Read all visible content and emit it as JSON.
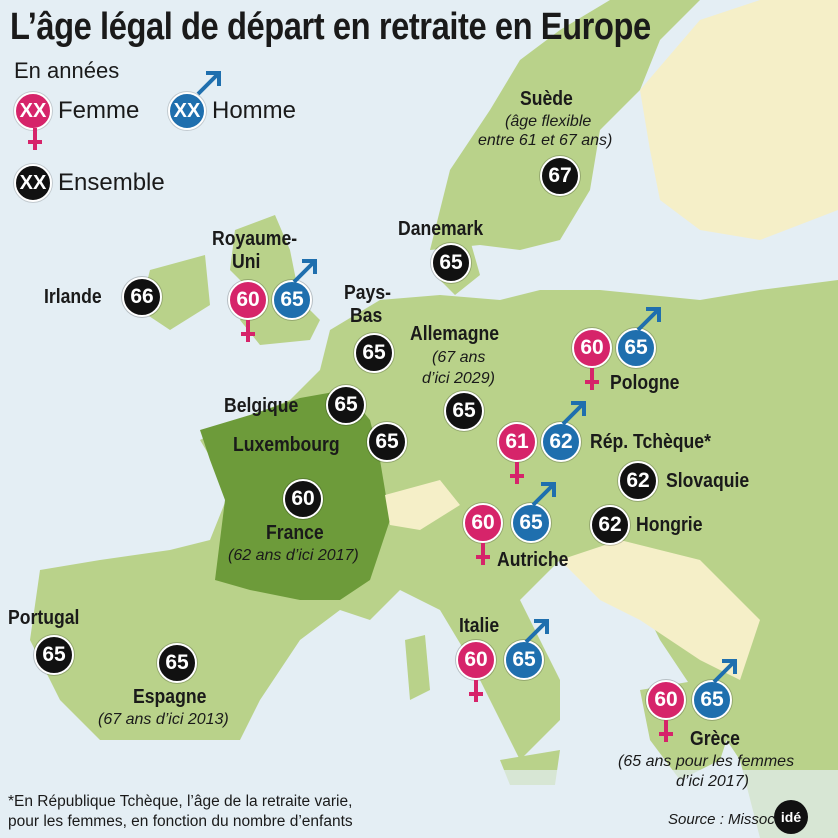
{
  "title": "L’âge légal de départ en retraite en Europe",
  "unit": "En années",
  "legend": {
    "female_label": "Femme",
    "male_label": "Homme",
    "all_label": "Ensemble",
    "sample": "XX"
  },
  "colors": {
    "female": "#d6246a",
    "male": "#1f6fae",
    "all": "#111111",
    "sea": "#dbe9f1",
    "land": "#b9d28a",
    "land_highlight": "#6d9b3a",
    "land_other": "#f5efc8"
  },
  "countries": {
    "suede": {
      "name": "Suède",
      "note1": "(âge flexible",
      "note2": "entre 61 et 67 ans)",
      "all": "67"
    },
    "danemark": {
      "name": "Danemark",
      "all": "65"
    },
    "ru": {
      "name1": "Royaume-",
      "name2": "Uni",
      "female": "60",
      "male": "65"
    },
    "irlande": {
      "name": "Irlande",
      "all": "66"
    },
    "paysbas": {
      "name1": "Pays-",
      "name2": "Bas",
      "all": "65"
    },
    "allemagne": {
      "name": "Allemagne",
      "note1": "(67 ans",
      "note2": "d’ici 2029)",
      "all": "65"
    },
    "pologne": {
      "name": "Pologne",
      "female": "60",
      "male": "65"
    },
    "belgique": {
      "name": "Belgique",
      "all": "65"
    },
    "luxembourg": {
      "name": "Luxembourg",
      "all": "65"
    },
    "tcheque": {
      "name": "Rép. Tchèque*",
      "female": "61",
      "male": "62"
    },
    "slovaquie": {
      "name": "Slovaquie",
      "all": "62"
    },
    "hongrie": {
      "name": "Hongrie",
      "all": "62"
    },
    "france": {
      "name": "France",
      "note": "(62 ans d’ici 2017)",
      "all": "60"
    },
    "autriche": {
      "name": "Autriche",
      "female": "60",
      "male": "65"
    },
    "portugal": {
      "name": "Portugal",
      "all": "65"
    },
    "espagne": {
      "name": "Espagne",
      "note": "(67 ans d’ici 2013)",
      "all": "65"
    },
    "italie": {
      "name": "Italie",
      "female": "60",
      "male": "65"
    },
    "grece": {
      "name": "Grèce",
      "note1": "(65 ans pour les femmes",
      "note2": "d’ici 2017)",
      "female": "60",
      "male": "65"
    }
  },
  "footnote": {
    "line1": "*En République Tchèque, l’âge de la retraite varie,",
    "line2": "pour les femmes, en fonction du nombre d’enfants"
  },
  "source": "Source : Missoc",
  "logo": "idé"
}
